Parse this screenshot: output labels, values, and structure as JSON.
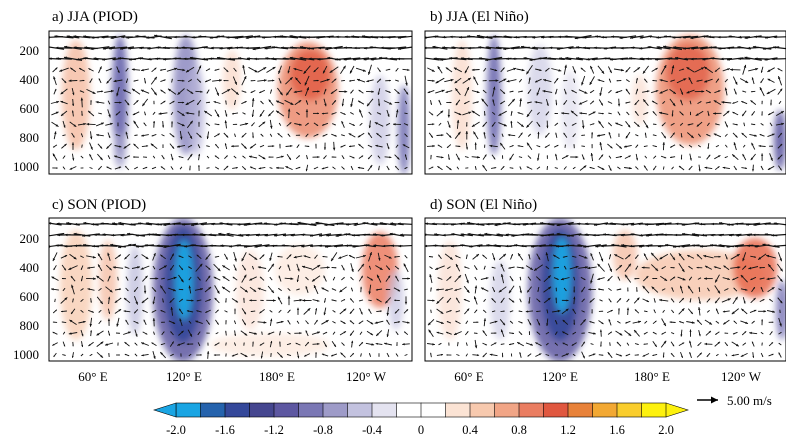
{
  "panels": [
    {
      "id": "a",
      "title": "a) JJA (PIOD)"
    },
    {
      "id": "b",
      "title": "b) JJA (El Niño)"
    },
    {
      "id": "c",
      "title": "c) SON (PIOD)"
    },
    {
      "id": "d",
      "title": "d) SON (El Niño)"
    }
  ],
  "y_ticks": [
    "200",
    "400",
    "600",
    "800",
    "1000"
  ],
  "x_ticks": [
    "60° E",
    "120° E",
    "180° E",
    "120° W"
  ],
  "colorbar": {
    "labels": [
      "-2.0",
      "-1.6",
      "-1.2",
      "-0.8",
      "-0.4",
      "0",
      "0.4",
      "0.8",
      "1.2",
      "1.6",
      "2.0"
    ],
    "colors": [
      "#1aa5e3",
      "#2563ad",
      "#34489a",
      "#45468f",
      "#5d57a1",
      "#7a77b4",
      "#9e9bc8",
      "#c3c2df",
      "#e4e3f0",
      "#ffffff",
      "#ffffff",
      "#fbe3d4",
      "#f7c9ae",
      "#f1a586",
      "#ea7d61",
      "#e0573f",
      "#e8823a",
      "#f2a833",
      "#f9cd2c",
      "#fdf10e"
    ]
  },
  "reference_vector": {
    "label": "5.00 m/s"
  }
}
